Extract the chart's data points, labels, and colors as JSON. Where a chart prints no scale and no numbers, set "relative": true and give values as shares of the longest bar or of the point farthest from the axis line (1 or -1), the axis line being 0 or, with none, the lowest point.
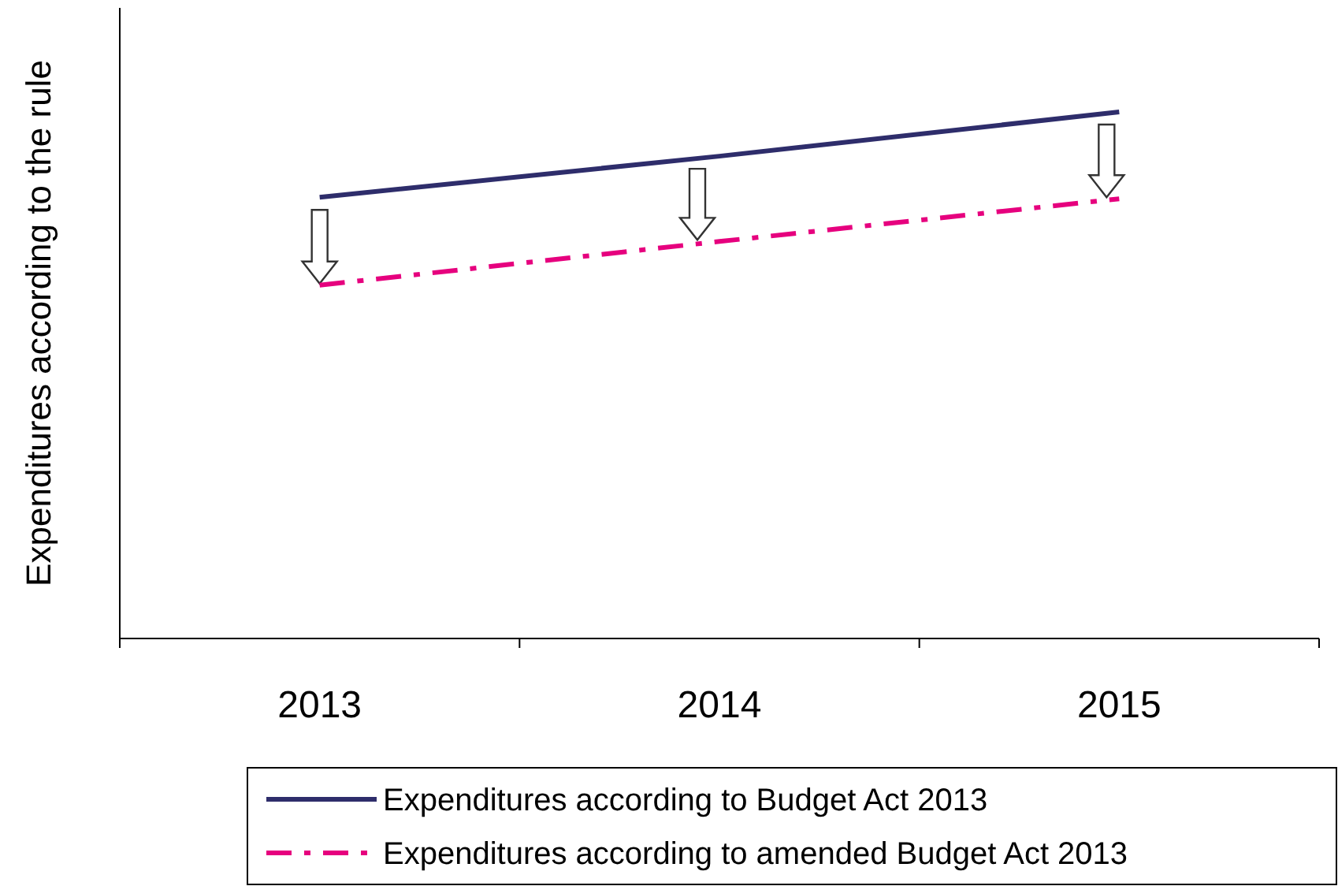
{
  "chart_data": {
    "type": "line",
    "relative": true,
    "ylabel": "Expenditures according to the rule",
    "categories": [
      "2013",
      "2014",
      "2015"
    ],
    "legend": "bottom",
    "series": [
      {
        "name": "Expenditures according to Budget Act 2013",
        "color": "#2e2d6b",
        "line_style": "solid",
        "values": [
          0.838,
          0.916,
          1
        ]
      },
      {
        "name": "Expenditures according to amended Budget Act 2013",
        "color": "#e6007e",
        "line_style": "dashed",
        "values": [
          0.671,
          0.754,
          0.835
        ]
      }
    ]
  }
}
